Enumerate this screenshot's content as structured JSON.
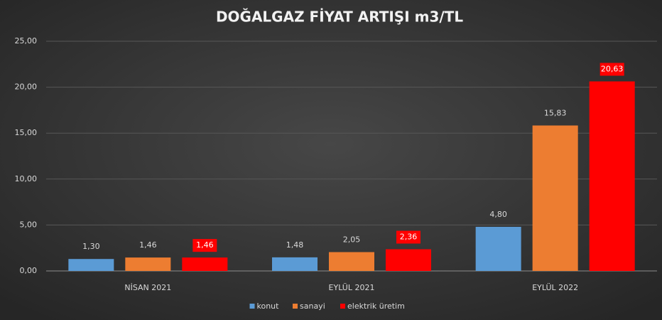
{
  "chart_data": {
    "type": "bar",
    "title": "DOĞALGAZ FİYAT ARTIŞI m3/TL",
    "categories": [
      "NİSAN 2021",
      "EYLÜL 2021",
      "EYLÜL 2022"
    ],
    "series": [
      {
        "name": "konut",
        "color": "#5b9bd5",
        "values": [
          1.3,
          1.48,
          4.8
        ],
        "value_labels": [
          "1,30",
          "1,48",
          "4,80"
        ]
      },
      {
        "name": "sanayi",
        "color": "#ed7d31",
        "values": [
          1.46,
          2.05,
          15.83
        ],
        "value_labels": [
          "1,46",
          "2,05",
          "15,83"
        ]
      },
      {
        "name": "elektrik üretim",
        "color": "#ff0000",
        "values": [
          1.46,
          2.36,
          20.63
        ],
        "value_labels": [
          "1,46",
          "2,36",
          "20,63"
        ]
      }
    ],
    "ylim": [
      0,
      25
    ],
    "yticks": [
      {
        "value": 0,
        "label": "0,00"
      },
      {
        "value": 5,
        "label": "5,00"
      },
      {
        "value": 10,
        "label": "10,00"
      },
      {
        "value": 15,
        "label": "15,00"
      },
      {
        "value": 20,
        "label": "20,00"
      },
      {
        "value": 25,
        "label": "25,00"
      }
    ],
    "grid": true,
    "legend": "bottom"
  }
}
